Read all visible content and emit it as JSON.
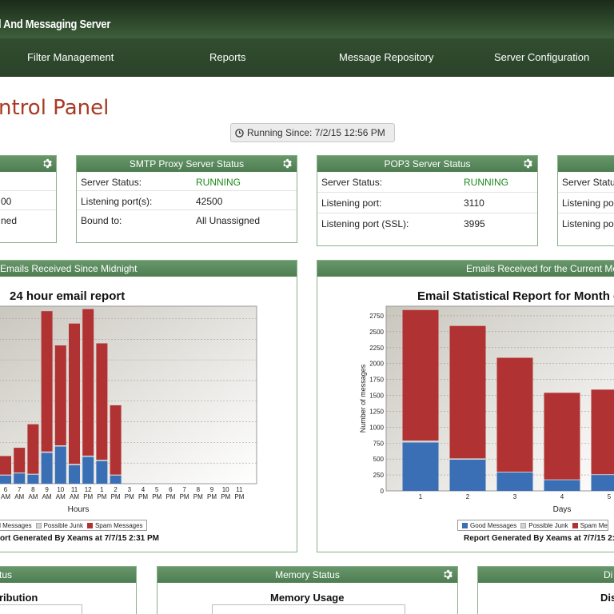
{
  "header": {
    "brand": "l And Messaging Server",
    "nav": [
      "Filter Management",
      "Reports",
      "Message Repository",
      "Server Configuration"
    ]
  },
  "page_title": "ntrol Panel",
  "running_since": "Running Since: 7/2/15 12:56 PM",
  "panels": {
    "left_partial": {
      "rows": [
        {
          "value": "00"
        },
        {
          "value": "ned"
        }
      ]
    },
    "smtp": {
      "title": "SMTP Proxy Server Status",
      "rows": [
        {
          "label": "Server Status:",
          "value": "RUNNING"
        },
        {
          "label": "Listening port(s):",
          "value": "42500"
        },
        {
          "label": "Bound to:",
          "value": "All Unassigned"
        }
      ]
    },
    "pop3": {
      "title": "POP3 Server Status",
      "rows": [
        {
          "label": "Server Status:",
          "value": "RUNNING"
        },
        {
          "label": "Listening port:",
          "value": "3110"
        },
        {
          "label": "Listening port (SSL):",
          "value": "3995"
        }
      ]
    },
    "right_partial": {
      "rows": [
        {
          "label": "Server Statu"
        },
        {
          "label": "Listening po"
        },
        {
          "label": "Listening po"
        }
      ]
    },
    "emails_midnight": {
      "title": "Emails Received Since Midnight",
      "chart_title": "24 hour email report",
      "xlabel": "Hours",
      "footer": "ort Generated By Xeams at 7/7/15 2:31 PM",
      "legend": [
        "od Messages",
        "Possible Junk",
        "Spam Messages"
      ]
    },
    "emails_month": {
      "title": "Emails Received for the Current Mo",
      "chart_title": "Email Statistical Report for Month o",
      "xlabel": "Days",
      "ylabel": "Number of messages",
      "footer": "Report Generated By Xeams at 7/7/15 2:31 PM",
      "legend": [
        "Good Messages",
        "Possible Junk",
        "Spam Me"
      ]
    },
    "bottom_left": {
      "title": "tus",
      "subtitle": "ribution"
    },
    "memory": {
      "title": "Memory Status",
      "subtitle": "Memory Usage"
    },
    "bottom_right": {
      "title": "Di",
      "subtitle": "Dis"
    }
  },
  "colors": {
    "good": "#3a6fb5",
    "junk": "#d4d4d4",
    "spam": "#b13232",
    "running": "#1c8a1c",
    "accent": "#a83a24"
  },
  "chart_data": [
    {
      "type": "bar",
      "stacked": true,
      "title": "24 hour email report",
      "xlabel": "Hours",
      "categories": [
        [
          "6",
          "AM"
        ],
        [
          "7",
          "AM"
        ],
        [
          "8",
          "AM"
        ],
        [
          "9",
          "AM"
        ],
        [
          "10",
          "AM"
        ],
        [
          "11",
          "AM"
        ],
        [
          "12",
          "PM"
        ],
        [
          "1",
          "PM"
        ],
        [
          "2",
          "PM"
        ],
        [
          "3",
          "PM"
        ],
        [
          "4",
          "PM"
        ],
        [
          "5",
          "PM"
        ],
        [
          "6",
          "PM"
        ],
        [
          "7",
          "PM"
        ],
        [
          "8",
          "PM"
        ],
        [
          "9",
          "PM"
        ],
        [
          "10",
          "PM"
        ],
        [
          "11",
          "PM"
        ]
      ],
      "series": [
        {
          "name": "Good Messages",
          "values": [
            20,
            25,
            22,
            75,
            90,
            45,
            65,
            55,
            20,
            0,
            0,
            0,
            0,
            0,
            0,
            0,
            0,
            0
          ]
        },
        {
          "name": "Possible Junk",
          "values": [
            2,
            2,
            2,
            3,
            3,
            3,
            3,
            3,
            2,
            0,
            0,
            0,
            0,
            0,
            0,
            0,
            0,
            0
          ]
        },
        {
          "name": "Spam Messages",
          "values": [
            45,
            60,
            120,
            340,
            242,
            340,
            355,
            282,
            168,
            0,
            0,
            0,
            0,
            0,
            0,
            0,
            0,
            0
          ]
        }
      ]
    },
    {
      "type": "bar",
      "stacked": true,
      "title": "Email Statistical Report for Month o",
      "xlabel": "Days",
      "ylabel": "Number of messages",
      "ylim": [
        0,
        2900
      ],
      "yticks": [
        0,
        250,
        500,
        750,
        1000,
        1250,
        1500,
        1750,
        2000,
        2250,
        2500,
        2750
      ],
      "categories": [
        "1",
        "2",
        "3",
        "4",
        "5"
      ],
      "series": [
        {
          "name": "Good Messages",
          "values": [
            760,
            490,
            290,
            170,
            250
          ]
        },
        {
          "name": "Possible Junk",
          "values": [
            30,
            20,
            10,
            10,
            10
          ]
        },
        {
          "name": "Spam Messages",
          "values": [
            2050,
            2080,
            1790,
            1360,
            1330
          ]
        }
      ]
    }
  ]
}
